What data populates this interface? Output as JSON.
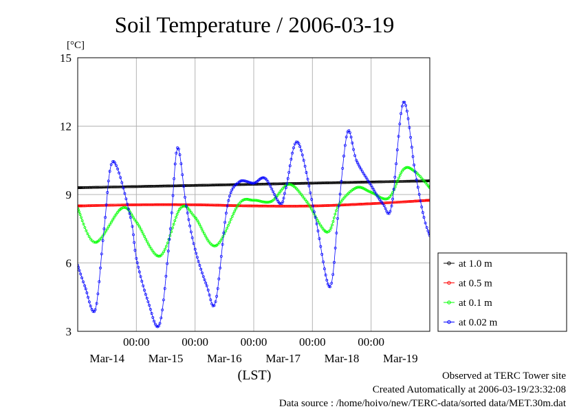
{
  "chart_data": {
    "type": "line",
    "title": "Soil Temperature / 2006-03-19",
    "y_unit": "[°C]",
    "xlabel": "(LST)",
    "ylabel": "",
    "ylim": [
      3,
      15
    ],
    "y_ticks": [
      3,
      6,
      9,
      12,
      15
    ],
    "x_range_days": [
      0,
      6
    ],
    "x_ticks": [
      {
        "pos": 1,
        "label": "00:00",
        "date": "Mar-14"
      },
      {
        "pos": 2,
        "label": "00:00",
        "date": "Mar-15"
      },
      {
        "pos": 3,
        "label": "00:00",
        "date": "Mar-16"
      },
      {
        "pos": 4,
        "label": "00:00",
        "date": "Mar-17"
      },
      {
        "pos": 5,
        "label": "00:00",
        "date": "Mar-18"
      }
    ],
    "x_day_labels": [
      {
        "pos": 0.5,
        "label": "Mar-14"
      },
      {
        "pos": 1.5,
        "label": "Mar-15"
      },
      {
        "pos": 2.5,
        "label": "Mar-16"
      },
      {
        "pos": 3.5,
        "label": "Mar-17"
      },
      {
        "pos": 4.5,
        "label": "Mar-18"
      },
      {
        "pos": 5.5,
        "label": "Mar-19"
      }
    ],
    "x_label_rows": {
      "time": "00:00"
    },
    "grid": true,
    "legend_position": "right",
    "series": [
      {
        "name": "at 1.0 m",
        "color": "#000000",
        "x": [
          0,
          1,
          2,
          3,
          4,
          5,
          6
        ],
        "y": [
          9.3,
          9.35,
          9.4,
          9.45,
          9.5,
          9.55,
          9.6
        ]
      },
      {
        "name": "at 0.5 m",
        "color": "#ff0000",
        "x": [
          0,
          1,
          2,
          3,
          4,
          5,
          6
        ],
        "y": [
          8.5,
          8.55,
          8.55,
          8.5,
          8.5,
          8.6,
          8.75
        ]
      },
      {
        "name": "at 0.1 m",
        "color": "#00ff00",
        "x": [
          0,
          0.3,
          0.75,
          1.0,
          1.4,
          1.75,
          2.0,
          2.35,
          2.75,
          3.0,
          3.3,
          3.6,
          3.9,
          4.25,
          4.45,
          4.75,
          5.0,
          5.3,
          5.55,
          5.75,
          6.0
        ],
        "y": [
          8.4,
          6.9,
          8.4,
          7.8,
          6.3,
          8.4,
          8.0,
          6.75,
          8.6,
          8.75,
          8.7,
          9.45,
          8.7,
          7.35,
          8.55,
          9.3,
          9.1,
          8.85,
          10.1,
          10.0,
          9.3
        ]
      },
      {
        "name": "at 0.02 m",
        "color": "#0000ff",
        "x": [
          0,
          0.12,
          0.3,
          0.45,
          0.6,
          0.9,
          1.0,
          1.2,
          1.4,
          1.58,
          1.7,
          1.85,
          2.0,
          2.2,
          2.35,
          2.55,
          2.75,
          3.0,
          3.2,
          3.45,
          3.55,
          3.75,
          4.05,
          4.3,
          4.45,
          4.6,
          4.75,
          5.0,
          5.2,
          5.35,
          5.55,
          5.75,
          5.9,
          6.0
        ],
        "y": [
          5.9,
          5.0,
          3.95,
          7.5,
          10.45,
          8.0,
          6.2,
          4.3,
          3.35,
          7.5,
          11.05,
          8.5,
          6.6,
          5.0,
          4.3,
          8.5,
          9.55,
          9.5,
          9.7,
          8.6,
          9.3,
          11.3,
          8.0,
          4.95,
          8.5,
          11.75,
          10.5,
          9.4,
          8.6,
          8.5,
          13.05,
          10.0,
          8.0,
          7.2
        ]
      }
    ]
  },
  "footer": {
    "observed": "Observed at TERC Tower site",
    "created": "Created Automatically at 2006-03-19/23:32:08",
    "source": "Data source : /home/hoivo/new/TERC-data/sorted  data/MET.30m.dat"
  }
}
